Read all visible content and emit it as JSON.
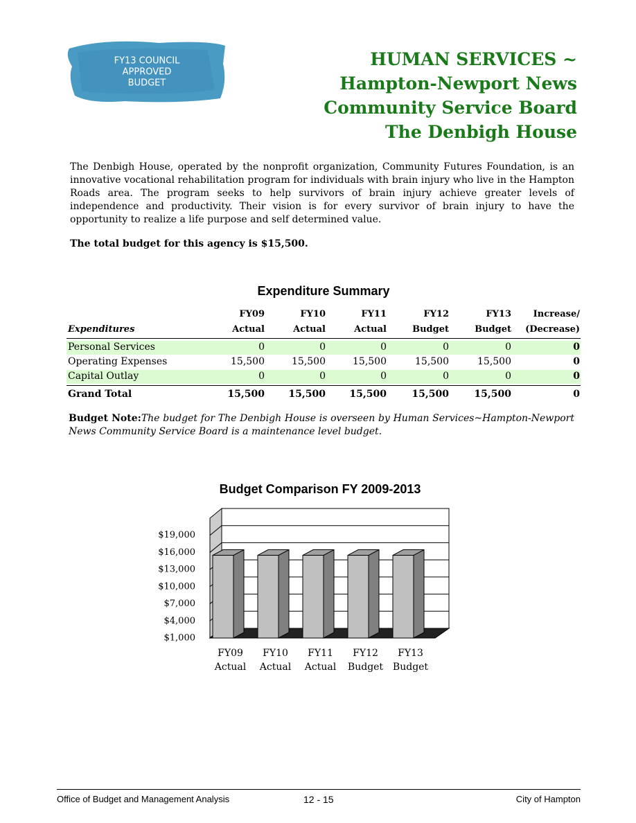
{
  "logo": [
    "FY13 COUNCIL",
    "APPROVED",
    "BUDGET"
  ],
  "header": {
    "title": [
      "HUMAN SERVICES ~",
      "Hampton-Newport News",
      "Community Service Board",
      "The Denbigh House"
    ]
  },
  "description": "The Denbigh House, operated by the nonprofit organization, Community Futures Foundation,  is an innovative vocational rehabilitation program for individuals with brain injury who live in the Hampton Roads area.  The program seeks to help survivors of brain injury achieve greater levels of independence and productivity.  Their vision is for every survivor of brain injury to have the opportunity to realize a life purpose and self determined value.",
  "total_budget": "The total budget for this agency is $15,500.",
  "table": {
    "title": "Expenditure Summary",
    "header": [
      [
        "",
        "FY09",
        "FY10",
        "FY11",
        "FY12",
        "FY13",
        "Increase/"
      ],
      [
        "Expenditures",
        "Actual",
        "Actual",
        "Actual",
        "Budget",
        "Budget",
        "(Decrease)"
      ]
    ],
    "rows": [
      [
        "Personal Services",
        "0",
        "0",
        "0",
        "0",
        "0",
        "0"
      ],
      [
        "Operating Expenses",
        "15,500",
        "15,500",
        "15,500",
        "15,500",
        "15,500",
        "0"
      ],
      [
        "Capital Outlay",
        "0",
        "0",
        "0",
        "0",
        "0",
        "0"
      ]
    ],
    "total": [
      "Grand Total",
      "15,500",
      "15,500",
      "15,500",
      "15,500",
      "15,500",
      "0"
    ]
  },
  "budget_note": {
    "label": "Budget Note:",
    "text": "The budget for The Denbigh House is overseen by Human Services~Hampton-Newport News Community Service Board is a maintenance level budget."
  },
  "chart_data": {
    "type": "bar3d",
    "title": "Budget Comparison FY 2009-2013",
    "categories": [
      [
        "FY09",
        "Actual"
      ],
      [
        "FY10",
        "Actual"
      ],
      [
        "FY11",
        "Actual"
      ],
      [
        "FY12",
        "Budget"
      ],
      [
        "FY13",
        "Budget"
      ]
    ],
    "values": [
      15500,
      15500,
      15500,
      15500,
      15500
    ],
    "color": "#c0c0c0",
    "ylim": [
      1000,
      22000
    ],
    "yticks": [
      {
        "value": 1000,
        "label": "$1,000"
      },
      {
        "value": 4000,
        "label": "$4,000"
      },
      {
        "value": 7000,
        "label": "$7,000"
      },
      {
        "value": 10000,
        "label": "$10,000"
      },
      {
        "value": 13000,
        "label": "$13,000"
      },
      {
        "value": 16000,
        "label": "$16,000"
      },
      {
        "value": 19000,
        "label": "$19,000"
      }
    ],
    "grid": true
  },
  "footer": {
    "left": "Office of Budget and Management Analysis",
    "center": "12 - 15",
    "right": "City of Hampton"
  }
}
